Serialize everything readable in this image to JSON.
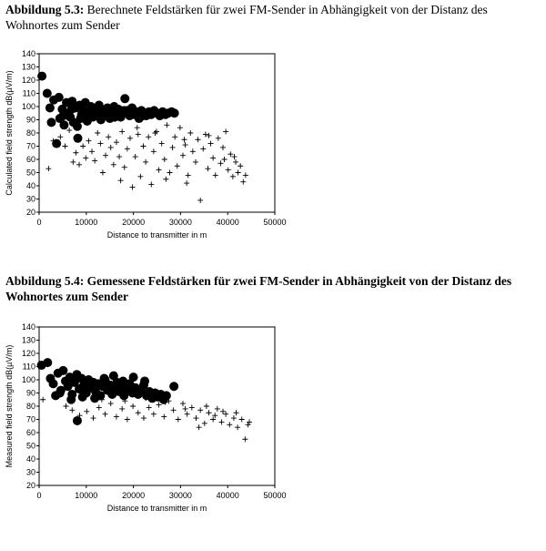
{
  "captions": [
    {
      "label": "Abbildung 5.3:",
      "text": "Berechnete Feldstärken für zwei FM-Sender in Abhängigkeit von der Distanz des Wohnortes zum Sender"
    },
    {
      "label": "Abbildung 5.4:",
      "text": "Gemessene Feldstärken für zwei FM-Sender in Abhängigkeit von der Distanz des Wohnortes zum Sender"
    }
  ],
  "chart_data": [
    {
      "type": "scatter",
      "xlabel": "Distance to transmitter in m",
      "ylabel": "Calculated field strength dB(µV/m)",
      "xlim": [
        0,
        50000
      ],
      "ylim": [
        20,
        140
      ],
      "xticks": [
        0,
        10000,
        20000,
        30000,
        40000,
        50000
      ],
      "yticks": [
        20,
        30,
        40,
        50,
        60,
        70,
        80,
        90,
        100,
        110,
        120,
        130,
        140
      ],
      "grid": false,
      "series": [
        {
          "marker": "filled-circle",
          "points": [
            [
              600,
              123
            ],
            [
              1700,
              110
            ],
            [
              2300,
              99
            ],
            [
              2600,
              88
            ],
            [
              3100,
              105
            ],
            [
              3700,
              72
            ],
            [
              4200,
              107
            ],
            [
              4400,
              91
            ],
            [
              4900,
              98
            ],
            [
              5300,
              86
            ],
            [
              5800,
              103
            ],
            [
              6200,
              95
            ],
            [
              6600,
              92
            ],
            [
              7000,
              104
            ],
            [
              7300,
              88
            ],
            [
              7700,
              99
            ],
            [
              8100,
              85
            ],
            [
              8200,
              76
            ],
            [
              8600,
              101
            ],
            [
              9000,
              94
            ],
            [
              9400,
              97
            ],
            [
              9800,
              103
            ],
            [
              10200,
              89
            ],
            [
              10600,
              96
            ],
            [
              11000,
              100
            ],
            [
              11400,
              92
            ],
            [
              11800,
              98
            ],
            [
              12300,
              94
            ],
            [
              12700,
              101
            ],
            [
              13100,
              90
            ],
            [
              13600,
              97
            ],
            [
              14000,
              93
            ],
            [
              14500,
              99
            ],
            [
              15000,
              91
            ],
            [
              15400,
              96
            ],
            [
              15900,
              100
            ],
            [
              16300,
              94
            ],
            [
              16800,
              98
            ],
            [
              17300,
              92
            ],
            [
              17800,
              95
            ],
            [
              18200,
              106
            ],
            [
              18700,
              97
            ],
            [
              19200,
              93
            ],
            [
              19700,
              99
            ],
            [
              20200,
              94
            ],
            [
              20700,
              96
            ],
            [
              21200,
              91
            ],
            [
              21700,
              97
            ],
            [
              22200,
              95
            ],
            [
              22700,
              93
            ],
            [
              23300,
              96
            ],
            [
              23800,
              94
            ],
            [
              24400,
              97
            ],
            [
              25000,
              95
            ],
            [
              25600,
              93
            ],
            [
              26200,
              96
            ],
            [
              26800,
              94
            ],
            [
              27400,
              95
            ],
            [
              28100,
              96
            ],
            [
              28700,
              95
            ],
            [
              5100,
              93
            ],
            [
              6900,
              98
            ],
            [
              8800,
              91
            ],
            [
              10400,
              93
            ],
            [
              12000,
              95
            ],
            [
              14200,
              96
            ],
            [
              16000,
              92
            ],
            [
              18000,
              97
            ],
            [
              20000,
              96
            ],
            [
              22000,
              93
            ]
          ]
        },
        {
          "marker": "plus",
          "points": [
            [
              2000,
              53
            ],
            [
              3000,
              74
            ],
            [
              4500,
              77
            ],
            [
              5500,
              70
            ],
            [
              6400,
              82
            ],
            [
              7200,
              58
            ],
            [
              7800,
              65
            ],
            [
              8500,
              56
            ],
            [
              9300,
              70
            ],
            [
              9900,
              61
            ],
            [
              10500,
              74
            ],
            [
              11200,
              66
            ],
            [
              11800,
              59
            ],
            [
              12400,
              80
            ],
            [
              13000,
              72
            ],
            [
              13500,
              50
            ],
            [
              14100,
              63
            ],
            [
              14700,
              77
            ],
            [
              15200,
              69
            ],
            [
              15800,
              56
            ],
            [
              16400,
              73
            ],
            [
              17000,
              62
            ],
            [
              17600,
              81
            ],
            [
              18100,
              54
            ],
            [
              18700,
              68
            ],
            [
              19300,
              76
            ],
            [
              19800,
              39
            ],
            [
              20400,
              62
            ],
            [
              21000,
              79
            ],
            [
              21500,
              47
            ],
            [
              22100,
              70
            ],
            [
              22600,
              58
            ],
            [
              23200,
              77
            ],
            [
              23800,
              41
            ],
            [
              24300,
              66
            ],
            [
              24900,
              81
            ],
            [
              25400,
              52
            ],
            [
              26000,
              72
            ],
            [
              26600,
              60
            ],
            [
              27100,
              86
            ],
            [
              27700,
              50
            ],
            [
              28300,
              69
            ],
            [
              28800,
              77
            ],
            [
              29300,
              55
            ],
            [
              29900,
              84
            ],
            [
              30500,
              63
            ],
            [
              31000,
              71
            ],
            [
              31600,
              48
            ],
            [
              32100,
              80
            ],
            [
              32600,
              66
            ],
            [
              33200,
              58
            ],
            [
              33700,
              75
            ],
            [
              34200,
              29
            ],
            [
              34800,
              68
            ],
            [
              35300,
              79
            ],
            [
              35800,
              53
            ],
            [
              36400,
              72
            ],
            [
              36900,
              61
            ],
            [
              37400,
              48
            ],
            [
              38000,
              76
            ],
            [
              38500,
              57
            ],
            [
              39000,
              69
            ],
            [
              39600,
              81
            ],
            [
              40100,
              52
            ],
            [
              40600,
              64
            ],
            [
              41100,
              47
            ],
            [
              41700,
              58
            ],
            [
              42200,
              50
            ],
            [
              42700,
              55
            ],
            [
              43300,
              43
            ],
            [
              43800,
              48
            ],
            [
              20800,
              84
            ],
            [
              24600,
              80
            ],
            [
              30800,
              75
            ],
            [
              36000,
              78
            ],
            [
              39300,
              60
            ],
            [
              41400,
              62
            ],
            [
              26900,
              45
            ],
            [
              31300,
              42
            ],
            [
              17300,
              44
            ]
          ]
        }
      ]
    },
    {
      "type": "scatter",
      "xlabel": "Distance to transmitter in m",
      "ylabel": "Measured field strength dB(µV/m)",
      "xlim": [
        0,
        50000
      ],
      "ylim": [
        20,
        140
      ],
      "xticks": [
        0,
        10000,
        20000,
        30000,
        40000,
        50000
      ],
      "yticks": [
        20,
        30,
        40,
        50,
        60,
        70,
        80,
        90,
        100,
        110,
        120,
        130,
        140
      ],
      "grid": false,
      "series": [
        {
          "marker": "filled-circle",
          "points": [
            [
              500,
              111
            ],
            [
              1800,
              113
            ],
            [
              2400,
              101
            ],
            [
              3000,
              97
            ],
            [
              3500,
              88
            ],
            [
              4000,
              105
            ],
            [
              4600,
              92
            ],
            [
              5100,
              107
            ],
            [
              5600,
              99
            ],
            [
              6100,
              95
            ],
            [
              6500,
              102
            ],
            [
              7000,
              89
            ],
            [
              7500,
              98
            ],
            [
              8000,
              104
            ],
            [
              8100,
              69
            ],
            [
              8500,
              93
            ],
            [
              9000,
              101
            ],
            [
              9500,
              96
            ],
            [
              10000,
              90
            ],
            [
              10500,
              100
            ],
            [
              11000,
              94
            ],
            [
              11500,
              98
            ],
            [
              12000,
              91
            ],
            [
              12500,
              97
            ],
            [
              13000,
              88
            ],
            [
              13500,
              95
            ],
            [
              14000,
              100
            ],
            [
              14500,
              92
            ],
            [
              15000,
              96
            ],
            [
              15500,
              89
            ],
            [
              16000,
              94
            ],
            [
              16500,
              98
            ],
            [
              17000,
              91
            ],
            [
              17500,
              95
            ],
            [
              18000,
              88
            ],
            [
              18600,
              93
            ],
            [
              19200,
              97
            ],
            [
              19800,
              90
            ],
            [
              20400,
              94
            ],
            [
              21000,
              89
            ],
            [
              21600,
              92
            ],
            [
              22200,
              96
            ],
            [
              22800,
              88
            ],
            [
              23400,
              91
            ],
            [
              24000,
              86
            ],
            [
              24600,
              90
            ],
            [
              25200,
              87
            ],
            [
              25800,
              89
            ],
            [
              26400,
              85
            ],
            [
              27000,
              88
            ],
            [
              28600,
              95
            ],
            [
              4400,
              90
            ],
            [
              6800,
              85
            ],
            [
              9200,
              87
            ],
            [
              11800,
              86
            ],
            [
              13800,
              101
            ],
            [
              15800,
              103
            ],
            [
              17800,
              99
            ],
            [
              20000,
              102
            ],
            [
              22400,
              99
            ]
          ]
        },
        {
          "marker": "plus",
          "points": [
            [
              800,
              85
            ],
            [
              5700,
              80
            ],
            [
              7000,
              77
            ],
            [
              8600,
              73
            ],
            [
              10100,
              76
            ],
            [
              11500,
              71
            ],
            [
              12700,
              79
            ],
            [
              14000,
              74
            ],
            [
              15200,
              82
            ],
            [
              16400,
              72
            ],
            [
              17600,
              78
            ],
            [
              18700,
              70
            ],
            [
              19900,
              80
            ],
            [
              21000,
              75
            ],
            [
              22200,
              71
            ],
            [
              23300,
              79
            ],
            [
              24300,
              74
            ],
            [
              25400,
              81
            ],
            [
              26500,
              72
            ],
            [
              27500,
              84
            ],
            [
              28500,
              77
            ],
            [
              29500,
              70
            ],
            [
              30500,
              82
            ],
            [
              31400,
              74
            ],
            [
              32400,
              79
            ],
            [
              33300,
              71
            ],
            [
              34200,
              77
            ],
            [
              35100,
              67
            ],
            [
              36000,
              75
            ],
            [
              36900,
              70
            ],
            [
              37800,
              78
            ],
            [
              38700,
              68
            ],
            [
              39600,
              74
            ],
            [
              40400,
              66
            ],
            [
              41300,
              71
            ],
            [
              42100,
              64
            ],
            [
              43000,
              70
            ],
            [
              43700,
              55
            ],
            [
              44300,
              66
            ],
            [
              44600,
              68
            ],
            [
              13300,
              85
            ],
            [
              18200,
              84
            ],
            [
              22600,
              86
            ],
            [
              26800,
              83
            ],
            [
              31000,
              78
            ],
            [
              35500,
              80
            ],
            [
              39000,
              76
            ],
            [
              41800,
              75
            ],
            [
              33900,
              64
            ],
            [
              37300,
              73
            ]
          ]
        }
      ]
    }
  ]
}
